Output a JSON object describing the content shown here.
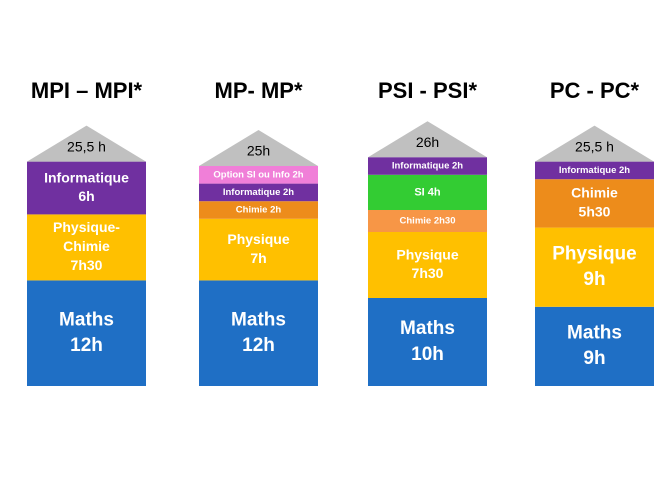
{
  "columns": [
    {
      "title": "MPI – MPI*",
      "total": "25,5 h",
      "segments": [
        {
          "lines": [
            "Maths",
            "12h"
          ],
          "hours": 12,
          "color": "#1f6fc5"
        },
        {
          "lines": [
            "Physique-",
            "Chimie",
            "7h30"
          ],
          "hours": 7.5,
          "color": "#ffc000"
        },
        {
          "lines": [
            "Informatique",
            "6h"
          ],
          "hours": 6,
          "color": "#7030a0"
        }
      ]
    },
    {
      "title": "MP- MP*",
      "total": "25h",
      "segments": [
        {
          "lines": [
            "Maths",
            "12h"
          ],
          "hours": 12,
          "color": "#1f6fc5"
        },
        {
          "lines": [
            "Physique",
            "7h"
          ],
          "hours": 7,
          "color": "#ffc000"
        },
        {
          "lines": [
            "Chimie 2h"
          ],
          "hours": 2,
          "color": "#ed8c1b"
        },
        {
          "lines": [
            "Informatique 2h"
          ],
          "hours": 2,
          "color": "#7030a0"
        },
        {
          "lines": [
            "Option SI ou Info 2h"
          ],
          "hours": 2,
          "color": "#f07fd8"
        }
      ]
    },
    {
      "title": "PSI - PSI*",
      "total": "26h",
      "segments": [
        {
          "lines": [
            "Maths",
            "10h"
          ],
          "hours": 10,
          "color": "#1f6fc5"
        },
        {
          "lines": [
            "Physique",
            "7h30"
          ],
          "hours": 7.5,
          "color": "#ffc000"
        },
        {
          "lines": [
            "Chimie 2h30"
          ],
          "hours": 2.5,
          "color": "#f79646"
        },
        {
          "lines": [
            "SI 4h"
          ],
          "hours": 4,
          "color": "#33cc33"
        },
        {
          "lines": [
            "Informatique 2h"
          ],
          "hours": 2,
          "color": "#7030a0"
        }
      ]
    },
    {
      "title": "PC - PC*",
      "total": "25,5 h",
      "segments": [
        {
          "lines": [
            "Maths",
            "9h"
          ],
          "hours": 9,
          "color": "#1f6fc5"
        },
        {
          "lines": [
            "Physique",
            "9h"
          ],
          "hours": 9,
          "color": "#ffc000"
        },
        {
          "lines": [
            "Chimie",
            "5h30"
          ],
          "hours": 5.5,
          "color": "#ed8c1b"
        },
        {
          "lines": [
            "Informatique 2h"
          ],
          "hours": 2,
          "color": "#7030a0"
        }
      ]
    }
  ]
}
